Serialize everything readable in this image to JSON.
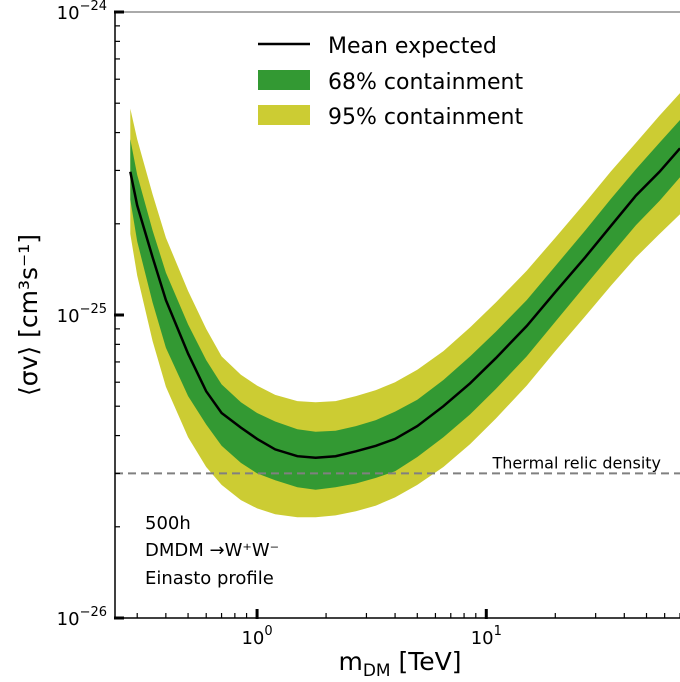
{
  "chart_data": {
    "type": "area",
    "xscale": "log",
    "yscale": "log",
    "xlim": [
      0.24,
      70
    ],
    "ylim": [
      1e-26,
      1e-24
    ],
    "xlabel_main": "m",
    "xlabel_sub": "DM",
    "xlabel_unit": " [TeV]",
    "ylabel": "⟨σv⟩ [cm³s⁻¹]",
    "x_ticks": [
      {
        "value": 1,
        "base": "10",
        "exp": "0"
      },
      {
        "value": 10,
        "base": "10",
        "exp": "1"
      }
    ],
    "y_ticks": [
      {
        "value": 1e-26,
        "base": "10",
        "exp": "−26"
      },
      {
        "value": 1e-25,
        "base": "10",
        "exp": "−25"
      },
      {
        "value": 1e-24,
        "base": "10",
        "exp": "−24"
      }
    ],
    "legend": {
      "position": "top-center",
      "entries": [
        {
          "label": "Mean expected",
          "kind": "line",
          "color": "#000000"
        },
        {
          "label": "68% containment",
          "kind": "patch",
          "color": "#339933"
        },
        {
          "label": "95% containment",
          "kind": "patch",
          "color": "#cccc33"
        }
      ]
    },
    "x": [
      0.28,
      0.3,
      0.35,
      0.4,
      0.5,
      0.6,
      0.7,
      0.85,
      1.0,
      1.2,
      1.5,
      1.8,
      2.2,
      2.7,
      3.3,
      4.0,
      5.0,
      6.5,
      8.5,
      11,
      15,
      20,
      27,
      35,
      45,
      57,
      70
    ],
    "series": [
      {
        "name": "Mean expected",
        "y": [
          2.97e-25,
          2.3e-25,
          1.55e-25,
          1.12e-25,
          7.45e-26,
          5.6e-26,
          4.75e-26,
          4.25e-26,
          3.9e-26,
          3.6e-26,
          3.42e-26,
          3.38e-26,
          3.42e-26,
          3.55e-26,
          3.7e-26,
          3.9e-26,
          4.3e-26,
          5e-26,
          5.95e-26,
          7.2e-26,
          9.2e-26,
          1.19e-25,
          1.55e-25,
          1.97e-25,
          2.48e-25,
          2.97e-25,
          3.55e-25
        ]
      },
      {
        "name": "68% containment",
        "y_low": [
          2.4e-25,
          1.75e-25,
          1.1e-25,
          7.8e-26,
          5.4e-26,
          4.35e-26,
          3.7e-26,
          3.25e-26,
          3e-26,
          2.85e-26,
          2.7e-26,
          2.65e-26,
          2.7e-26,
          2.78e-26,
          2.9e-26,
          3.05e-26,
          3.4e-26,
          3.95e-26,
          4.7e-26,
          5.7e-26,
          7.3e-26,
          9.5e-26,
          1.25e-25,
          1.58e-25,
          1.98e-25,
          2.38e-25,
          2.85e-25
        ],
        "y_high": [
          3.8e-25,
          2.9e-25,
          1.9e-25,
          1.38e-25,
          9.3e-26,
          7.1e-26,
          5.9e-26,
          5.15e-26,
          4.75e-26,
          4.45e-26,
          4.2e-26,
          4.12e-26,
          4.15e-26,
          4.3e-26,
          4.5e-26,
          4.8e-26,
          5.25e-26,
          6.1e-26,
          7.3e-26,
          8.8e-26,
          1.12e-25,
          1.45e-25,
          1.9e-25,
          2.42e-25,
          3.03e-25,
          3.7e-25,
          4.4e-25
        ]
      },
      {
        "name": "95% containment",
        "y_low": [
          1.85e-25,
          1.35e-25,
          8.2e-26,
          5.8e-26,
          3.95e-26,
          3.15e-26,
          2.75e-26,
          2.45e-26,
          2.3e-26,
          2.2e-26,
          2.15e-26,
          2.15e-26,
          2.18e-26,
          2.25e-26,
          2.35e-26,
          2.5e-26,
          2.75e-26,
          3.15e-26,
          3.75e-26,
          4.55e-26,
          5.85e-26,
          7.6e-26,
          9.9e-26,
          1.25e-25,
          1.55e-25,
          1.85e-25,
          2.15e-25
        ],
        "y_high": [
          4.8e-25,
          3.8e-25,
          2.5e-25,
          1.8e-25,
          1.2e-25,
          9e-26,
          7.3e-26,
          6.35e-26,
          5.85e-26,
          5.45e-26,
          5.2e-26,
          5.15e-26,
          5.2e-26,
          5.4e-26,
          5.65e-26,
          6e-26,
          6.6e-26,
          7.6e-26,
          9.1e-26,
          1.1e-25,
          1.4e-25,
          1.8e-25,
          2.35e-25,
          2.98e-25,
          3.7e-25,
          4.55e-25,
          5.4e-25
        ]
      }
    ],
    "reference_line": {
      "label": "Thermal relic density",
      "value": 3e-26,
      "color": "#808080",
      "style": "dashed"
    },
    "annotation_lines": [
      "500h",
      "DMDM →W⁺W⁻",
      "Einasto profile"
    ],
    "colors": {
      "band68": "#339933",
      "band95": "#cccc33",
      "mean": "#000000",
      "relic": "#808080"
    }
  }
}
